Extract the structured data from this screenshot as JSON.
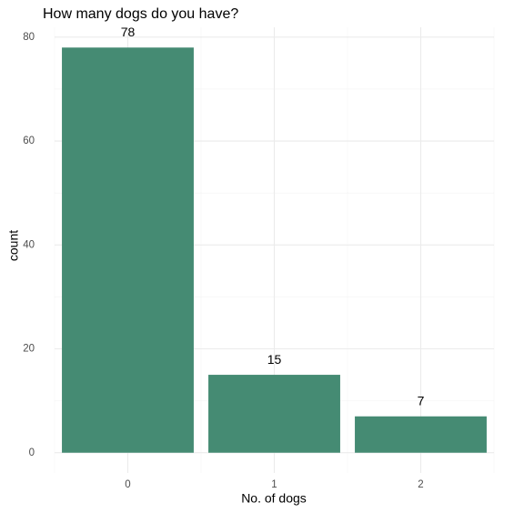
{
  "chart_data": {
    "type": "bar",
    "title": "How many dogs do you have?",
    "x_label": "No. of dogs",
    "y_label": "count",
    "categories": [
      "0",
      "1",
      "2"
    ],
    "values": [
      78,
      15,
      7
    ],
    "color": "#458b73",
    "ylim": [
      -3.9,
      81.9
    ],
    "yticks": [
      0,
      20,
      40,
      60,
      80
    ],
    "grid": true
  }
}
